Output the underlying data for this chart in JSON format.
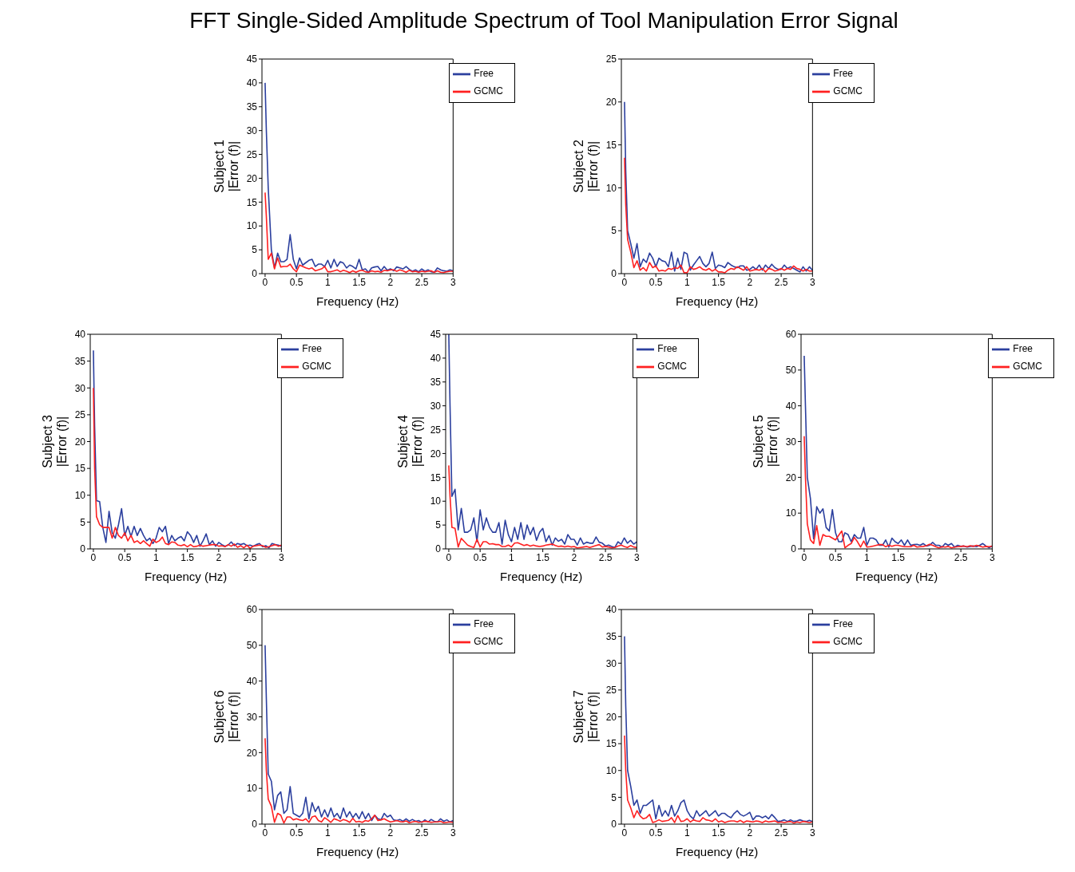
{
  "chart_data": [
    {
      "type": "line",
      "title": "FFT Single-Sided Amplitude Spectrum of Tool Manipulation Error Signal",
      "xlabel": "Frequency (Hz)",
      "ylabel": "Subject 1\n|Error (f)|",
      "xlim": [
        -0.05,
        3
      ],
      "xticks": [
        0,
        0.5,
        1,
        1.5,
        2,
        2.5,
        3
      ],
      "ylim": [
        0,
        45
      ],
      "yticks": [
        0,
        5,
        10,
        15,
        20,
        25,
        30,
        35,
        40,
        45
      ],
      "grid": false,
      "legend": "top right",
      "marker": "none",
      "line_style": "solid",
      "x": [
        0,
        0.02,
        0.05,
        0.1,
        0.15,
        0.2,
        0.25,
        0.3,
        0.35,
        0.4,
        0.45,
        0.5,
        0.55,
        0.6,
        0.65,
        0.7,
        0.75,
        0.8,
        0.85,
        0.9,
        0.95,
        1,
        1.05,
        1.1,
        1.15,
        1.2,
        1.25,
        1.3,
        1.35,
        1.4,
        1.45,
        1.5,
        1.55,
        1.6,
        1.65,
        1.7,
        1.75,
        1.8,
        1.85,
        1.9,
        1.95,
        2,
        2.05,
        2.1,
        2.15,
        2.2,
        2.25,
        2.3,
        2.35,
        2.4,
        2.45,
        2.5,
        2.55,
        2.6,
        2.65,
        2.7,
        2.75,
        2.8,
        2.85,
        2.9,
        2.95,
        3
      ],
      "series": [
        {
          "name": "Free",
          "color": "#2b3f9e",
          "values": [
            40,
            30,
            18,
            5,
            1.2,
            4.3,
            2.5,
            2.5,
            3,
            8.2,
            3,
            1,
            3.3,
            1.8,
            2.3,
            2.8,
            3,
            1.5,
            2,
            2,
            1.5,
            2.8,
            1.2,
            3,
            1.5,
            2.5,
            2.2,
            1.2,
            1.8,
            1.5,
            1,
            3,
            0.8,
            1,
            0.3,
            1.2,
            1.4,
            1.5,
            0.6,
            1.5,
            0.7,
            1,
            0.6,
            1.4,
            1.2,
            1,
            1.5,
            0.9,
            0.5,
            0.8,
            0.4,
            1,
            0.5,
            0.8,
            0.4,
            0.3,
            1.2,
            0.8,
            0.6,
            0.5,
            0.8,
            0.6
          ]
        },
        {
          "name": "GCMC",
          "color": "#ff2020",
          "values": [
            17,
            12,
            3,
            4.3,
            1,
            3.3,
            1.4,
            1.5,
            1.5,
            2,
            1,
            0.4,
            1.8,
            1.5,
            1.2,
            1,
            1.2,
            0.6,
            0.8,
            1,
            1.5,
            0.4,
            0.4,
            0.6,
            0.8,
            0.4,
            0.7,
            0.5,
            0.2,
            0.6,
            0.3,
            0.6,
            0.7,
            0.4,
            0.3,
            0.6,
            0.4,
            0.5,
            0.3,
            0.7,
            0.6,
            0.8,
            0.8,
            0.5,
            0.8,
            0.6,
            0.3,
            0.7,
            0.4,
            0.5,
            0.3,
            0.5,
            0.4,
            0.5,
            0.6,
            0.3,
            0.6,
            0.3,
            0.2,
            0.4,
            0.5,
            0.5
          ]
        }
      ]
    },
    {
      "type": "line",
      "xlabel": "Frequency (Hz)",
      "ylabel": "Subject 2\n|Error (f)|",
      "xlim": [
        -0.05,
        3
      ],
      "xticks": [
        0,
        0.5,
        1,
        1.5,
        2,
        2.5,
        3
      ],
      "ylim": [
        0,
        25
      ],
      "yticks": [
        0,
        5,
        10,
        15,
        20,
        25
      ],
      "grid": false,
      "legend": "top right",
      "marker": "none",
      "line_style": "solid",
      "x": [
        0,
        0.02,
        0.05,
        0.1,
        0.15,
        0.2,
        0.25,
        0.3,
        0.35,
        0.4,
        0.45,
        0.5,
        0.55,
        0.6,
        0.65,
        0.7,
        0.75,
        0.8,
        0.85,
        0.9,
        0.95,
        1,
        1.05,
        1.1,
        1.15,
        1.2,
        1.25,
        1.3,
        1.35,
        1.4,
        1.45,
        1.5,
        1.55,
        1.6,
        1.65,
        1.7,
        1.75,
        1.8,
        1.85,
        1.9,
        1.95,
        2,
        2.05,
        2.1,
        2.15,
        2.2,
        2.25,
        2.3,
        2.35,
        2.4,
        2.45,
        2.5,
        2.55,
        2.6,
        2.65,
        2.7,
        2.75,
        2.8,
        2.85,
        2.9,
        2.95,
        3
      ],
      "series": [
        {
          "name": "Free",
          "color": "#2b3f9e",
          "values": [
            20,
            12,
            5,
            3.5,
            1.8,
            3.5,
            0.8,
            1.7,
            1.3,
            2.4,
            1.8,
            0.8,
            1.8,
            1.5,
            1.4,
            0.8,
            2.5,
            0.3,
            1.8,
            0.5,
            2.5,
            2.3,
            0.4,
            1,
            1.5,
            2,
            1.2,
            0.8,
            1.2,
            2.5,
            0.6,
            1,
            0.9,
            0.7,
            1.3,
            1,
            0.8,
            0.7,
            0.9,
            0.9,
            0.4,
            0.5,
            0.8,
            0.5,
            1,
            0.4,
            1,
            0.6,
            1.1,
            0.7,
            0.5,
            0.5,
            1,
            0.6,
            0.8,
            0.6,
            0.4,
            0.2,
            0.8,
            0.3,
            0.8,
            0.4
          ]
        },
        {
          "name": "GCMC",
          "color": "#ff2020",
          "values": [
            13.5,
            8,
            4,
            2.5,
            0.7,
            1.5,
            0.4,
            0.7,
            0.3,
            1.3,
            0.7,
            0.9,
            0.3,
            0.4,
            0.3,
            0.6,
            0.5,
            0.7,
            0.6,
            1,
            0.1,
            0.1,
            0.8,
            0.5,
            0.6,
            0.8,
            0.5,
            0.4,
            0.6,
            0.3,
            0.5,
            0.2,
            0.2,
            0.1,
            0.4,
            0.6,
            0.5,
            0.8,
            0.6,
            0.4,
            0.8,
            0.3,
            0.4,
            0.5,
            0.4,
            0.6,
            0.2,
            0.6,
            0.5,
            0.3,
            0.4,
            0.6,
            0.4,
            0.6,
            0.5,
            0.9,
            0.6,
            0.5,
            0.3,
            0.5,
            0.3,
            0.3
          ]
        }
      ]
    },
    {
      "type": "line",
      "xlabel": "Frequency (Hz)",
      "ylabel": "Subject 3\n|Error (f)|",
      "xlim": [
        -0.05,
        3
      ],
      "xticks": [
        0,
        0.5,
        1,
        1.5,
        2,
        2.5,
        3
      ],
      "ylim": [
        0,
        40
      ],
      "yticks": [
        0,
        5,
        10,
        15,
        20,
        25,
        30,
        35,
        40
      ],
      "grid": false,
      "legend": "top right",
      "marker": "none",
      "line_style": "solid",
      "x": [
        0,
        0.02,
        0.05,
        0.1,
        0.15,
        0.2,
        0.25,
        0.3,
        0.35,
        0.4,
        0.45,
        0.5,
        0.55,
        0.6,
        0.65,
        0.7,
        0.75,
        0.8,
        0.85,
        0.9,
        0.95,
        1,
        1.05,
        1.1,
        1.15,
        1.2,
        1.25,
        1.3,
        1.35,
        1.4,
        1.45,
        1.5,
        1.55,
        1.6,
        1.65,
        1.7,
        1.75,
        1.8,
        1.85,
        1.9,
        1.95,
        2,
        2.05,
        2.1,
        2.15,
        2.2,
        2.25,
        2.3,
        2.35,
        2.4,
        2.45,
        2.5,
        2.55,
        2.6,
        2.65,
        2.7,
        2.75,
        2.8,
        2.85,
        2.9,
        2.95,
        3
      ],
      "series": [
        {
          "name": "Free",
          "color": "#2b3f9e",
          "values": [
            37,
            23,
            9,
            8.8,
            4,
            1.2,
            7,
            3,
            2,
            4.5,
            7.5,
            2.5,
            4.2,
            2.3,
            4.2,
            2.5,
            3.8,
            2.5,
            1.5,
            2,
            1,
            2,
            4,
            3.2,
            4.2,
            1,
            2.5,
            1.5,
            2,
            2.3,
            1.5,
            3.2,
            2.5,
            1.2,
            2.5,
            0.5,
            1.5,
            2.8,
            0.8,
            1.5,
            0.5,
            1.2,
            0.8,
            0.5,
            0.7,
            1.3,
            0.6,
            1,
            0.8,
            1,
            0.6,
            0.7,
            0.5,
            0.8,
            1,
            0.4,
            0.6,
            0.2,
            1,
            0.8,
            0.7,
            0.5
          ]
        },
        {
          "name": "GCMC",
          "color": "#ff2020",
          "values": [
            30,
            15,
            6,
            4.5,
            4,
            4,
            4,
            2,
            4,
            2.5,
            2,
            3,
            1.5,
            2.5,
            1.2,
            1.5,
            1,
            1.5,
            1,
            0.5,
            1.8,
            1.2,
            1.5,
            2.2,
            1,
            0.8,
            1.3,
            1.2,
            0.7,
            0.6,
            0.8,
            0.4,
            0.8,
            0.4,
            0.5,
            0.7,
            0.5,
            0.6,
            0.7,
            0.8,
            0.8,
            0.5,
            0.6,
            0.4,
            0.8,
            0.5,
            0.9,
            0.3,
            0.6,
            0.2,
            0.7,
            0.1,
            0.5,
            0.6,
            0.7,
            0.6,
            0.3,
            0.4,
            0.6,
            0.8,
            0.5,
            0.7
          ]
        }
      ]
    },
    {
      "type": "line",
      "xlabel": "Frequency (Hz)",
      "ylabel": "Subject 4\n|Error (f)|",
      "xlim": [
        -0.05,
        3
      ],
      "xticks": [
        0,
        0.5,
        1,
        1.5,
        2,
        2.5,
        3
      ],
      "ylim": [
        0,
        45
      ],
      "yticks": [
        0,
        5,
        10,
        15,
        20,
        25,
        30,
        35,
        40,
        45
      ],
      "grid": false,
      "legend": "top right",
      "marker": "none",
      "line_style": "solid",
      "x": [
        0,
        0.02,
        0.05,
        0.1,
        0.15,
        0.2,
        0.25,
        0.3,
        0.35,
        0.4,
        0.45,
        0.5,
        0.55,
        0.6,
        0.65,
        0.7,
        0.75,
        0.8,
        0.85,
        0.9,
        0.95,
        1,
        1.05,
        1.1,
        1.15,
        1.2,
        1.25,
        1.3,
        1.35,
        1.4,
        1.45,
        1.5,
        1.55,
        1.6,
        1.65,
        1.7,
        1.75,
        1.8,
        1.85,
        1.9,
        1.95,
        2,
        2.05,
        2.1,
        2.15,
        2.2,
        2.25,
        2.3,
        2.35,
        2.4,
        2.45,
        2.5,
        2.55,
        2.6,
        2.65,
        2.7,
        2.75,
        2.8,
        2.85,
        2.9,
        2.95,
        3
      ],
      "series": [
        {
          "name": "Free",
          "color": "#2b3f9e",
          "values": [
            45,
            30,
            11,
            12.5,
            4,
            8.5,
            3.5,
            3.5,
            4,
            6.5,
            1.5,
            8.2,
            4,
            6.5,
            4.5,
            3.5,
            3.5,
            5.5,
            1,
            6,
            3,
            1.5,
            4.5,
            2,
            5.5,
            2,
            5,
            3,
            4.5,
            1.8,
            3.5,
            4.3,
            1.5,
            2.8,
            0.8,
            2.3,
            1.6,
            2,
            1,
            3,
            2,
            2,
            0.8,
            2.3,
            1,
            1.4,
            1.2,
            1.2,
            2.5,
            1.4,
            1.2,
            0.6,
            0.8,
            0.5,
            0.3,
            1.5,
            1,
            2.3,
            1.2,
            1.8,
            1,
            1.5
          ]
        },
        {
          "name": "GCMC",
          "color": "#ff2020",
          "values": [
            17.5,
            11,
            4.5,
            4.3,
            0.4,
            2.2,
            1.5,
            0.8,
            0.5,
            0.3,
            2,
            0.4,
            1.5,
            1.5,
            1,
            1.1,
            0.9,
            0.9,
            0.5,
            0.5,
            0.8,
            0.4,
            1.2,
            1.3,
            1,
            0.7,
            0.9,
            0.6,
            0.8,
            0.6,
            0.5,
            0.6,
            0.8,
            0.9,
            1,
            0.7,
            0.5,
            0.6,
            0.4,
            0.6,
            0.4,
            0.5,
            0.2,
            0.3,
            0.4,
            0.5,
            0.3,
            0.5,
            0.7,
            0.9,
            0.4,
            0.5,
            0.4,
            0.2,
            0.3,
            0.6,
            0.8,
            0.5,
            0.3,
            0.7,
            0.4,
            0.3
          ]
        }
      ]
    },
    {
      "type": "line",
      "xlabel": "Frequency (Hz)",
      "ylabel": "Subject 5\n|Error (f)|",
      "xlim": [
        -0.05,
        3
      ],
      "xticks": [
        0,
        0.5,
        1,
        1.5,
        2,
        2.5,
        3
      ],
      "ylim": [
        0,
        60
      ],
      "yticks": [
        0,
        10,
        20,
        30,
        40,
        50,
        60
      ],
      "grid": false,
      "legend": "top right",
      "marker": "none",
      "line_style": "solid",
      "x": [
        0,
        0.02,
        0.05,
        0.1,
        0.15,
        0.2,
        0.25,
        0.3,
        0.35,
        0.4,
        0.45,
        0.5,
        0.55,
        0.6,
        0.65,
        0.7,
        0.75,
        0.8,
        0.85,
        0.9,
        0.95,
        1,
        1.05,
        1.1,
        1.15,
        1.2,
        1.25,
        1.3,
        1.35,
        1.4,
        1.45,
        1.5,
        1.55,
        1.6,
        1.65,
        1.7,
        1.75,
        1.8,
        1.85,
        1.9,
        1.95,
        2,
        2.05,
        2.1,
        2.15,
        2.2,
        2.25,
        2.3,
        2.35,
        2.4,
        2.45,
        2.5,
        2.55,
        2.6,
        2.65,
        2.7,
        2.75,
        2.8,
        2.85,
        2.9,
        2.95,
        3
      ],
      "series": [
        {
          "name": "Free",
          "color": "#2b3f9e",
          "values": [
            54,
            40,
            20,
            14,
            2.8,
            11.8,
            10,
            11.2,
            6,
            5,
            11,
            4.5,
            2,
            2,
            4.5,
            4,
            2,
            4,
            3,
            3,
            6,
            1,
            3,
            3,
            2.5,
            1,
            1,
            2.5,
            0.5,
            3,
            2,
            1.5,
            2.5,
            1,
            2.5,
            1,
            1.2,
            1.3,
            1,
            1.5,
            0.8,
            1,
            1.8,
            1,
            1,
            0.5,
            1.5,
            1,
            1.5,
            0.5,
            1,
            0.7,
            0.8,
            0.5,
            0.7,
            0.8,
            0.6,
            1,
            1.5,
            0.8,
            0.3,
            0.8
          ]
        },
        {
          "name": "GCMC",
          "color": "#ff2020",
          "values": [
            31.5,
            20,
            7,
            2.5,
            1.5,
            6.5,
            1,
            4,
            3.5,
            3.5,
            3,
            2.5,
            3.8,
            5,
            0.3,
            1,
            1.5,
            3.2,
            2,
            0.5,
            2.2,
            0.5,
            0.6,
            0.8,
            1,
            1.2,
            1.2,
            0.6,
            1,
            0.7,
            1,
            1,
            0.8,
            0.6,
            0.6,
            0.6,
            1,
            0.5,
            0.6,
            0.7,
            0.9,
            1.3,
            1,
            0.6,
            0.3,
            0.6,
            0.5,
            0.7,
            0.3,
            0.5,
            0.6,
            0.7,
            0.8,
            0.6,
            0.9,
            0.7,
            1,
            0.8,
            0.5,
            0.7,
            0.6,
            0.8
          ]
        }
      ]
    },
    {
      "type": "line",
      "xlabel": "Frequency (Hz)",
      "ylabel": "Subject 6\n|Error (f)|",
      "xlim": [
        -0.05,
        3
      ],
      "xticks": [
        0,
        0.5,
        1,
        1.5,
        2,
        2.5,
        3
      ],
      "ylim": [
        0,
        60
      ],
      "yticks": [
        0,
        10,
        20,
        30,
        40,
        50,
        60
      ],
      "grid": false,
      "legend": "top right",
      "marker": "none",
      "line_style": "solid",
      "x": [
        0,
        0.02,
        0.05,
        0.1,
        0.15,
        0.2,
        0.25,
        0.3,
        0.35,
        0.4,
        0.45,
        0.5,
        0.55,
        0.6,
        0.65,
        0.7,
        0.75,
        0.8,
        0.85,
        0.9,
        0.95,
        1,
        1.05,
        1.1,
        1.15,
        1.2,
        1.25,
        1.3,
        1.35,
        1.4,
        1.45,
        1.5,
        1.55,
        1.6,
        1.65,
        1.7,
        1.75,
        1.8,
        1.85,
        1.9,
        1.95,
        2,
        2.05,
        2.1,
        2.15,
        2.2,
        2.25,
        2.3,
        2.35,
        2.4,
        2.45,
        2.5,
        2.55,
        2.6,
        2.65,
        2.7,
        2.75,
        2.8,
        2.85,
        2.9,
        2.95,
        3
      ],
      "series": [
        {
          "name": "Free",
          "color": "#2b3f9e",
          "values": [
            50,
            35,
            14,
            12,
            4,
            8,
            9,
            3,
            4,
            10.5,
            3,
            2.5,
            2,
            3,
            7.5,
            1.5,
            6,
            3.5,
            5,
            2,
            4,
            2,
            4.5,
            2,
            3,
            1.5,
            4.5,
            2,
            3.5,
            1.8,
            3,
            1.5,
            3.5,
            1.5,
            3,
            1,
            2.5,
            1.5,
            1.2,
            3,
            2,
            2.5,
            1.2,
            1,
            1.3,
            0.8,
            1.5,
            0.8,
            1.3,
            0.8,
            1,
            0.5,
            1.2,
            0.6,
            1.3,
            0.8,
            0.6,
            1.5,
            0.8,
            1.2,
            0.6,
            1
          ]
        },
        {
          "name": "GCMC",
          "color": "#ff2020",
          "values": [
            24,
            15,
            7,
            5,
            0.5,
            3,
            2.5,
            0.3,
            2,
            2,
            1.2,
            1.5,
            1.2,
            1,
            1.5,
            0.5,
            2,
            2.3,
            1,
            0.6,
            1.8,
            1.2,
            0.5,
            1.5,
            1.2,
            0.8,
            1.3,
            1,
            0.5,
            1.6,
            0.6,
            0.8,
            0.5,
            1,
            0.8,
            1.5,
            2.5,
            1,
            1.2,
            1.5,
            1,
            0.6,
            0.8,
            1,
            0.7,
            0.6,
            0.9,
            0.4,
            0.6,
            0.8,
            0.5,
            0.6,
            0.8,
            0.7,
            0.5,
            0.6,
            0.6,
            0.8,
            0.4,
            0.5,
            0.6,
            0.5
          ]
        }
      ]
    },
    {
      "type": "line",
      "xlabel": "Frequency (Hz)",
      "ylabel": "Subject 7\n|Error (f)|",
      "xlim": [
        -0.05,
        3
      ],
      "xticks": [
        0,
        0.5,
        1,
        1.5,
        2,
        2.5,
        3
      ],
      "ylim": [
        0,
        40
      ],
      "yticks": [
        0,
        5,
        10,
        15,
        20,
        25,
        30,
        35,
        40
      ],
      "grid": false,
      "legend": "top right",
      "marker": "none",
      "line_style": "solid",
      "x": [
        0,
        0.02,
        0.05,
        0.1,
        0.15,
        0.2,
        0.25,
        0.3,
        0.35,
        0.4,
        0.45,
        0.5,
        0.55,
        0.6,
        0.65,
        0.7,
        0.75,
        0.8,
        0.85,
        0.9,
        0.95,
        1,
        1.05,
        1.1,
        1.15,
        1.2,
        1.25,
        1.3,
        1.35,
        1.4,
        1.45,
        1.5,
        1.55,
        1.6,
        1.65,
        1.7,
        1.75,
        1.8,
        1.85,
        1.9,
        1.95,
        2,
        2.05,
        2.1,
        2.15,
        2.2,
        2.25,
        2.3,
        2.35,
        2.4,
        2.45,
        2.5,
        2.55,
        2.6,
        2.65,
        2.7,
        2.75,
        2.8,
        2.85,
        2.9,
        2.95,
        3
      ],
      "series": [
        {
          "name": "Free",
          "color": "#2b3f9e",
          "values": [
            35,
            22,
            10,
            7,
            3.5,
            4.5,
            2,
            3.5,
            3.5,
            4,
            4.5,
            1,
            3.5,
            1.5,
            2.5,
            1.5,
            3.5,
            1.5,
            2.5,
            4,
            4.5,
            2.5,
            1.5,
            1,
            2.5,
            1.5,
            2,
            2.5,
            1.5,
            2,
            2.5,
            1.5,
            2,
            2,
            1.5,
            1.2,
            2,
            2.5,
            1.8,
            1.5,
            1.8,
            2.2,
            0.8,
            1.5,
            1.5,
            1.2,
            1.5,
            1,
            1.8,
            1.2,
            0.5,
            0.6,
            0.8,
            0.5,
            0.8,
            0.5,
            0.6,
            0.8,
            0.6,
            0.5,
            0.7,
            0.5
          ]
        },
        {
          "name": "GCMC",
          "color": "#ff2020",
          "values": [
            16.5,
            10,
            4.5,
            3,
            1.2,
            2.5,
            1.5,
            1,
            1.2,
            1.8,
            0.3,
            0.5,
            0.8,
            0.5,
            0.6,
            0.7,
            1.2,
            0.3,
            1.6,
            0.5,
            0.6,
            1,
            0.4,
            0.8,
            0.6,
            0.5,
            1.2,
            0.8,
            0.7,
            0.5,
            1,
            0.4,
            0.6,
            0.3,
            0.5,
            0.6,
            0.6,
            0.4,
            0.7,
            0.3,
            0.6,
            0.5,
            0.4,
            0.6,
            0.5,
            0.3,
            0.6,
            0.4,
            0.5,
            0.6,
            0.3,
            0.4,
            0.3,
            0.4,
            0.5,
            0.2,
            0.4,
            0.3,
            0.5,
            0.4,
            0.3,
            0.4
          ]
        }
      ]
    }
  ]
}
